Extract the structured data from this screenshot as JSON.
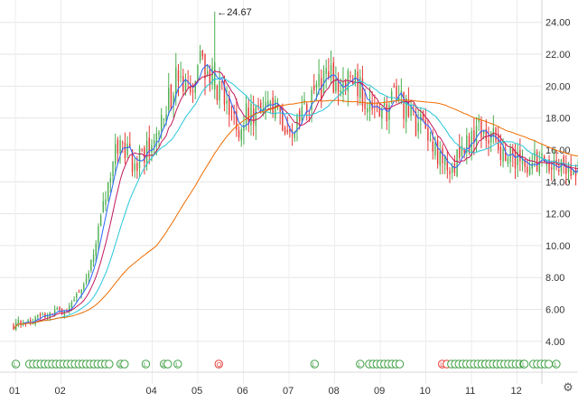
{
  "chart_data": {
    "type": "candlestick",
    "x_tick_labels": [
      "01",
      "02",
      "04",
      "05",
      "06",
      "07",
      "08",
      "09",
      "10",
      "11",
      "12"
    ],
    "y_ticks": [
      4.0,
      6.0,
      8.0,
      10.0,
      12.0,
      14.0,
      16.0,
      18.0,
      20.0,
      22.0,
      24.0
    ],
    "y_tick_labels": [
      "4.00",
      "6.00",
      "8.00",
      "10.00",
      "12.00",
      "14.00",
      "16.00",
      "18.00",
      "20.00",
      "22.00",
      "24.00"
    ],
    "ylim": [
      3.2,
      25.4
    ],
    "grid": true,
    "high_annotation": {
      "label": "←24.67",
      "value": 24.67,
      "month": 4.4
    },
    "up_color": "#4caf50",
    "down_color": "#e53935",
    "close_anchors": [
      [
        0.0,
        5.0
      ],
      [
        0.5,
        5.5
      ],
      [
        1.0,
        5.9
      ],
      [
        1.3,
        6.4
      ],
      [
        1.6,
        8.0
      ],
      [
        1.9,
        11.5
      ],
      [
        2.1,
        14.0
      ],
      [
        2.3,
        16.5
      ],
      [
        2.6,
        15.2
      ],
      [
        2.9,
        15.8
      ],
      [
        3.1,
        17.0
      ],
      [
        3.4,
        19.0
      ],
      [
        3.6,
        20.5
      ],
      [
        3.9,
        19.0
      ],
      [
        4.1,
        21.5
      ],
      [
        4.4,
        20.5
      ],
      [
        4.7,
        18.5
      ],
      [
        4.9,
        17.5
      ],
      [
        5.2,
        18.5
      ],
      [
        5.4,
        18.0
      ],
      [
        5.7,
        18.5
      ],
      [
        5.9,
        18.0
      ],
      [
        6.2,
        17.2
      ],
      [
        6.4,
        18.5
      ],
      [
        6.7,
        20.0
      ],
      [
        6.9,
        20.5
      ],
      [
        7.2,
        20.0
      ],
      [
        7.4,
        20.5
      ],
      [
        7.7,
        19.5
      ],
      [
        7.9,
        18.0
      ],
      [
        8.2,
        18.5
      ],
      [
        8.4,
        19.5
      ],
      [
        8.7,
        18.0
      ],
      [
        8.9,
        17.5
      ],
      [
        9.2,
        16.5
      ],
      [
        9.4,
        15.0
      ],
      [
        9.7,
        15.3
      ],
      [
        9.9,
        16.0
      ],
      [
        10.2,
        17.5
      ],
      [
        10.4,
        17.0
      ],
      [
        10.7,
        16.0
      ],
      [
        10.9,
        15.8
      ],
      [
        11.2,
        15.0
      ],
      [
        11.4,
        15.2
      ],
      [
        11.7,
        15.0
      ],
      [
        11.9,
        15.2
      ],
      [
        12.2,
        15.0
      ],
      [
        12.5,
        15.1
      ],
      [
        12.7,
        15.1
      ]
    ],
    "moving_averages": [
      {
        "period": 5,
        "color": "#2962ff"
      },
      {
        "period": 10,
        "color": "#c2185b"
      },
      {
        "period": 20,
        "color": "#26c6da"
      },
      {
        "period": 60,
        "color": "#ef6c00"
      }
    ],
    "event_markers": [
      {
        "month": 0.05,
        "count": 1,
        "label": "L",
        "color": "#43a047"
      },
      {
        "month": 0.35,
        "count": 22,
        "label": "",
        "color": "#43a047"
      },
      {
        "month": 2.35,
        "count": 2,
        "label": "L",
        "color": "#43a047"
      },
      {
        "month": 2.9,
        "count": 1,
        "label": "L",
        "color": "#43a047"
      },
      {
        "month": 3.3,
        "count": 2,
        "label": "L",
        "color": "#43a047"
      },
      {
        "month": 3.6,
        "count": 1,
        "label": "L",
        "color": "#43a047"
      },
      {
        "month": 4.5,
        "count": 1,
        "label": "Q",
        "color": "#e53935"
      },
      {
        "month": 6.6,
        "count": 1,
        "label": "L",
        "color": "#43a047"
      },
      {
        "month": 7.6,
        "count": 1,
        "label": "L",
        "color": "#43a047"
      },
      {
        "month": 7.8,
        "count": 9,
        "label": "",
        "color": "#43a047"
      },
      {
        "month": 9.4,
        "count": 1,
        "label": "L",
        "color": "#e53935"
      },
      {
        "month": 9.5,
        "count": 1,
        "label": "",
        "color": "#e53935"
      },
      {
        "month": 9.6,
        "count": 10,
        "label": "",
        "color": "#43a047"
      },
      {
        "month": 10.35,
        "count": 4,
        "label": "",
        "color": "#43a047"
      },
      {
        "month": 10.6,
        "count": 8,
        "label": "",
        "color": "#43a047"
      },
      {
        "month": 11.2,
        "count": 1,
        "label": "L",
        "color": "#43a047"
      },
      {
        "month": 11.4,
        "count": 5,
        "label": "",
        "color": "#43a047"
      },
      {
        "month": 11.9,
        "count": 1,
        "label": "L",
        "color": "#43a047"
      }
    ]
  },
  "toolbar": {
    "settings_icon": "gear-icon",
    "settings_glyph": "⚙"
  }
}
